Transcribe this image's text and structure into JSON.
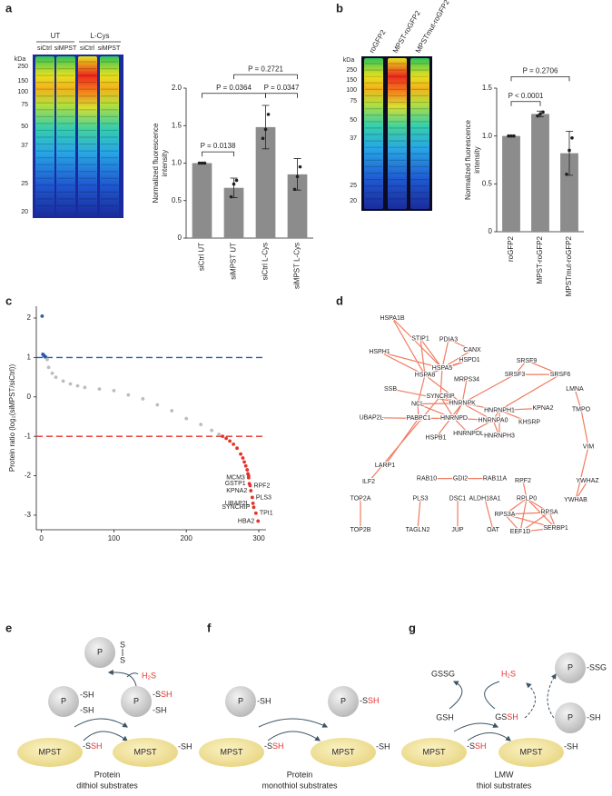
{
  "panel_labels": [
    "a",
    "b",
    "c",
    "d",
    "e",
    "f",
    "g"
  ],
  "blots": [
    {
      "unit": "kDa",
      "groups": [
        "UT",
        "L-Cys"
      ],
      "lanes": [
        "siCtrl",
        "siMPST",
        "siCtrl",
        "siMPST"
      ],
      "markers": [
        250,
        150,
        100,
        75,
        50,
        37,
        25,
        20
      ]
    },
    {
      "unit": "kDa",
      "lanes": [
        "roGFP2",
        "MPST-roGFP2",
        "MPSTmut-roGFP2"
      ],
      "markers": [
        250,
        150,
        100,
        75,
        50,
        37,
        25,
        20
      ]
    }
  ],
  "chart_data": [
    {
      "type": "bar",
      "ylabel": [
        "Normalized fluorescence",
        "intensity"
      ],
      "categories": [
        "siCtrl UT",
        "siMPST UT",
        "siCtrl L-Cys",
        "siMPST L-Cys"
      ],
      "values": [
        1.0,
        0.67,
        1.48,
        0.85
      ],
      "errors": [
        0.01,
        0.13,
        0.29,
        0.21
      ],
      "points": [
        [
          1.0,
          1.0,
          1.0
        ],
        [
          0.55,
          0.72,
          0.77
        ],
        [
          1.33,
          1.45,
          1.65
        ],
        [
          0.65,
          0.82,
          0.95
        ]
      ],
      "color": "#8c8c8c",
      "ylim": [
        0,
        2.0
      ],
      "yticks": [
        0,
        0.5,
        {
          "value": 1.0,
          "label": "1.0"
        },
        1.5,
        {
          "value": 2.0,
          "label": "2.0"
        }
      ],
      "annotations": [
        "P = 0.0138",
        "P = 0.0364",
        "P = 0.0347",
        "P = 0.2721"
      ]
    },
    {
      "type": "bar",
      "ylabel": [
        "Normalized fluorescence",
        "intensity"
      ],
      "categories": [
        "roGFP2",
        "MPST-roGFP2",
        "MPSTmut-roGFP2"
      ],
      "values": [
        1.0,
        1.23,
        0.82
      ],
      "errors": [
        0.01,
        0.03,
        0.23
      ],
      "points": [
        [
          1.0,
          1.0,
          1.0
        ],
        [
          1.21,
          1.23,
          1.25
        ],
        [
          0.6,
          0.85,
          0.98
        ]
      ],
      "color": "#8c8c8c",
      "ylim": [
        0,
        1.5
      ],
      "yticks": [
        0,
        0.5,
        {
          "value": 1.0,
          "label": "1.0"
        },
        1.5
      ],
      "annotations": [
        "P < 0.0001",
        "P = 0.2706"
      ]
    },
    {
      "type": "scatter",
      "ylabel": "Protein ratio (log₂(siMPST/siCtrl))",
      "xlim": [
        -7,
        310
      ],
      "ylim": [
        -3.37,
        2.3
      ],
      "xticks": [
        0,
        100,
        200,
        300
      ],
      "yticks": [
        -3,
        -2,
        -1,
        0,
        1,
        2
      ],
      "hlines": [
        {
          "value": 1,
          "color": "#2a5caa"
        },
        {
          "value": -1,
          "color": "#e8302a"
        }
      ],
      "series": [
        {
          "color": "#2a5caa",
          "x": [
            1,
            2,
            3,
            4,
            5,
            6
          ],
          "values": [
            2.05,
            1.08,
            1.06,
            1.04,
            1.02,
            1.01
          ]
        },
        {
          "color": "#bdbdbd",
          "x": [
            8,
            10,
            15,
            20,
            30,
            40,
            50,
            60,
            80,
            100,
            120,
            140,
            160,
            180,
            200,
            220,
            235,
            245
          ],
          "values": [
            0.95,
            0.75,
            0.6,
            0.5,
            0.4,
            0.33,
            0.28,
            0.24,
            0.2,
            0.16,
            0.05,
            -0.05,
            -0.2,
            -0.35,
            -0.55,
            -0.7,
            -0.85,
            -0.95
          ]
        },
        {
          "color": "#e8302a",
          "x": [
            250,
            255,
            260,
            265,
            270,
            275,
            278,
            280,
            282,
            284,
            285,
            286
          ],
          "values": [
            -1.0,
            -1.05,
            -1.12,
            -1.2,
            -1.3,
            -1.45,
            -1.55,
            -1.65,
            -1.75,
            -1.85,
            -1.95,
            -2.0
          ]
        },
        {
          "color": "#e8302a",
          "x": [
            286,
            287,
            288,
            289,
            291,
            292,
            293,
            296,
            299
          ],
          "values": [
            -2.05,
            -2.2,
            -2.25,
            -2.38,
            -2.55,
            -2.7,
            -2.8,
            -2.95,
            -3.15
          ],
          "labels": [
            "MCM3",
            "GSTP1",
            "RPF2",
            "KPNA2",
            "PLS3",
            "UBAP2L",
            "SYNCRIP",
            "TPI1",
            "HBA2"
          ]
        }
      ]
    }
  ],
  "network": {
    "nodes": [
      "HSPA1B",
      "STIP1",
      "PDIA3",
      "CANX",
      "HSPH1",
      "HSPD1",
      "SRSF9",
      "HSPA5",
      "HSPA8",
      "SRSF3",
      "SRSF6",
      "MRPS34",
      "LMNA",
      "SSB",
      "SYNCRIP",
      "HNRNPK",
      "NCL",
      "HNRNPH1",
      "KPNA2",
      "TMPO",
      "UBAP2L",
      "PABPC1",
      "HNRNPD",
      "HNRNPA0",
      "KHSRP",
      "HNRNPDL",
      "HNRNPH3",
      "HSPB1",
      "VIM",
      "LARP1",
      "ILF2",
      "RAB10",
      "GDI2",
      "RAB11A",
      "RPF2",
      "YWHAZ",
      "YWHAB",
      "TOP2A",
      "PLS3",
      "DSC1",
      "ALDH18A1",
      "RPLP0",
      "RPSA",
      "RPS3A",
      "SERBP1",
      "EEF1D",
      "TOP2B",
      "TAGLN2",
      "JUP",
      "OAT"
    ]
  },
  "schemes": [
    {
      "protein": "P",
      "enzyme": "MPST",
      "thiol": "-SH",
      "persulfide_s": "-S",
      "persulfide_sh": "SH",
      "disulfide": "S",
      "h2s": "H₂S",
      "caption": [
        "Protein",
        "dithiol substrates"
      ]
    },
    {
      "protein": "P",
      "enzyme": "MPST",
      "thiol": "-SH",
      "persulfide_s": "-S",
      "persulfide_sh": "SH",
      "caption": [
        "Protein",
        "monothiol substrates"
      ]
    },
    {
      "protein": "P",
      "enzyme": "MPST",
      "thiol": "-SH",
      "persulfide_s": "-S",
      "persulfide_sh": "SH",
      "h2s": "H₂S",
      "gssg": "GSSG",
      "gsh": "GSH",
      "gss": "GS",
      "mixed": "-SSG",
      "caption": [
        "LMW",
        "thiol substrates"
      ]
    }
  ]
}
